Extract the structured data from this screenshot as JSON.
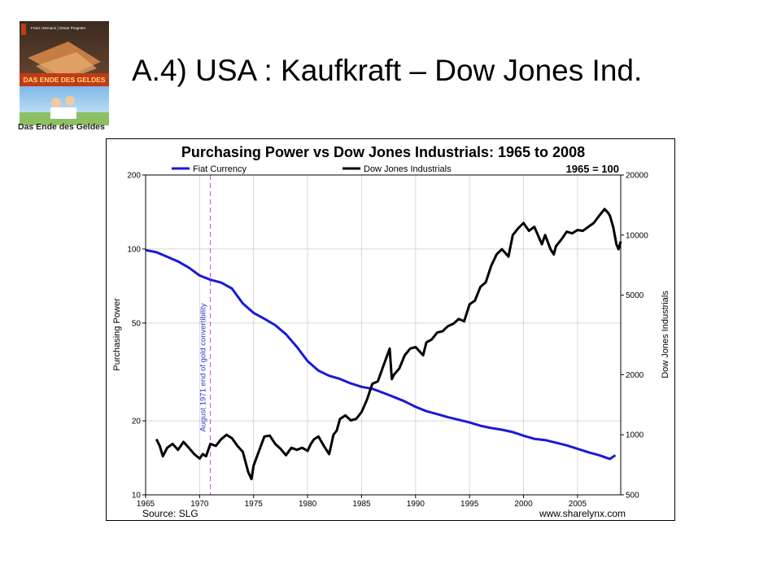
{
  "slide": {
    "title": "A.4) USA : Kaufkraft – Dow Jones Ind.",
    "book": {
      "caption": "Das Ende des Geldes",
      "authors": "Franz Hörmann | Otmar Pregetter",
      "cover_title": "DAS ENDE DES GELDES"
    }
  },
  "colors": {
    "fiat": "#1a1ad6",
    "dow": "#000000",
    "annotation": "#cc44cc",
    "grid": "#d7d7d7"
  },
  "chart_data": {
    "type": "line",
    "title": "Purchasing Power vs Dow Jones Industrials: 1965 to 2008",
    "base_note": "1965 = 100",
    "source": "Source: SLG",
    "site": "www.sharelynx.com",
    "xlabel": "",
    "ylabel_left": "Purchasing Power",
    "ylabel_right": "Dow Jones Industrials",
    "x_range": [
      1965,
      2009
    ],
    "x_ticks": [
      1965,
      1970,
      1975,
      1980,
      1985,
      1990,
      1995,
      2000,
      2005
    ],
    "y_left": {
      "scale": "log",
      "range": [
        10,
        200
      ],
      "ticks": [
        10,
        20,
        50,
        100,
        200
      ]
    },
    "y_right": {
      "scale": "log",
      "range": [
        500,
        20000
      ],
      "ticks": [
        500,
        1000,
        2000,
        5000,
        10000,
        20000
      ]
    },
    "grid": true,
    "legend_position": "top",
    "annotation": {
      "x": 1971.0,
      "label": "August 1971 end of gold convertibility"
    },
    "series": [
      {
        "name": "Fiat Currency",
        "axis": "left",
        "x": [
          1965,
          1966,
          1967,
          1968,
          1969,
          1970,
          1971,
          1972,
          1973,
          1974,
          1975,
          1976,
          1977,
          1978,
          1979,
          1980,
          1981,
          1982,
          1983,
          1984,
          1985,
          1986,
          1987,
          1988,
          1989,
          1990,
          1991,
          1992,
          1993,
          1994,
          1995,
          1996,
          1997,
          1998,
          1999,
          2000,
          2001,
          2002,
          2003,
          2004,
          2005,
          2006,
          2007,
          2008,
          2008.5
        ],
        "values": [
          99,
          97,
          93,
          89,
          84,
          78,
          75,
          73,
          69,
          60,
          55,
          52,
          49,
          45,
          40,
          35,
          32,
          30.5,
          29.6,
          28.4,
          27.5,
          27,
          26,
          25,
          24,
          22.8,
          21.9,
          21.3,
          20.7,
          20.2,
          19.7,
          19.1,
          18.7,
          18.4,
          18,
          17.4,
          16.9,
          16.7,
          16.3,
          15.9,
          15.4,
          14.9,
          14.5,
          14,
          14.5
        ]
      },
      {
        "name": "Dow Jones Industrials",
        "axis": "right",
        "x": [
          1966.0,
          1966.3,
          1966.6,
          1967.0,
          1967.5,
          1968.0,
          1968.5,
          1969.0,
          1969.5,
          1970.0,
          1970.3,
          1970.6,
          1971.0,
          1971.5,
          1972.0,
          1972.5,
          1973.0,
          1973.5,
          1974.0,
          1974.5,
          1974.8,
          1975.0,
          1975.5,
          1976.0,
          1976.5,
          1977.0,
          1977.5,
          1978.0,
          1978.5,
          1979.0,
          1979.5,
          1980.0,
          1980.3,
          1980.6,
          1981.0,
          1981.5,
          1982.0,
          1982.4,
          1982.7,
          1983.0,
          1983.5,
          1984.0,
          1984.5,
          1985.0,
          1985.5,
          1986.0,
          1986.5,
          1987.0,
          1987.6,
          1987.8,
          1988.0,
          1988.5,
          1989.0,
          1989.5,
          1990.0,
          1990.7,
          1991.0,
          1991.5,
          1992.0,
          1992.5,
          1993.0,
          1993.5,
          1994.0,
          1994.5,
          1995.0,
          1995.5,
          1996.0,
          1996.5,
          1997.0,
          1997.5,
          1998.0,
          1998.6,
          1999.0,
          1999.5,
          2000.0,
          2000.5,
          2001.0,
          2001.7,
          2002.0,
          2002.5,
          2002.8,
          2003.0,
          2003.5,
          2004.0,
          2004.5,
          2005.0,
          2005.5,
          2006.0,
          2006.5,
          2007.0,
          2007.5,
          2007.8,
          2008.0,
          2008.3,
          2008.6,
          2008.8,
          2009.0
        ],
        "values": [
          950,
          880,
          780,
          860,
          900,
          840,
          920,
          860,
          800,
          760,
          800,
          780,
          900,
          880,
          950,
          1000,
          960,
          880,
          820,
          650,
          600,
          700,
          830,
          980,
          990,
          900,
          850,
          790,
          860,
          840,
          860,
          830,
          900,
          950,
          980,
          880,
          800,
          1000,
          1050,
          1200,
          1250,
          1180,
          1200,
          1300,
          1500,
          1800,
          1850,
          2200,
          2700,
          1900,
          2000,
          2150,
          2500,
          2700,
          2750,
          2500,
          2900,
          3000,
          3250,
          3300,
          3500,
          3600,
          3800,
          3700,
          4500,
          4700,
          5500,
          5800,
          7000,
          8000,
          8500,
          7800,
          10000,
          10800,
          11500,
          10500,
          11000,
          9000,
          10000,
          8500,
          8000,
          8800,
          9500,
          10400,
          10200,
          10600,
          10500,
          11000,
          11500,
          12500,
          13500,
          13000,
          12500,
          11000,
          9000,
          8500,
          9300
        ]
      }
    ]
  }
}
